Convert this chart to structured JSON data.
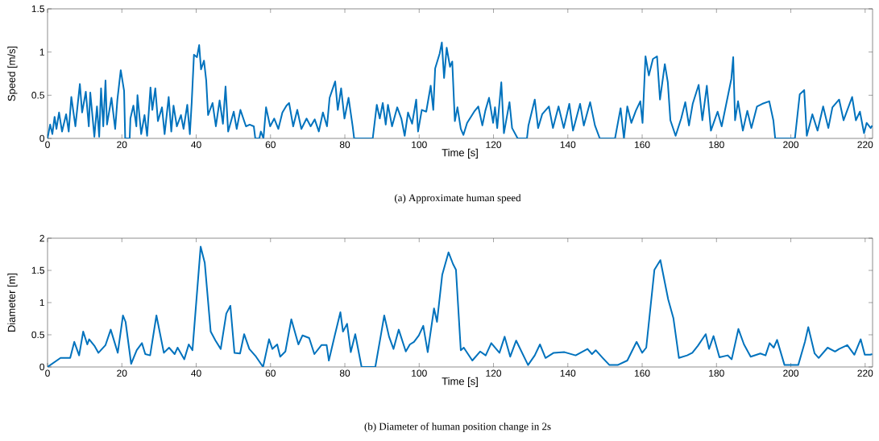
{
  "chart_data": [
    {
      "type": "line",
      "title": "(a)  Approximate human speed",
      "xlabel": "Time [s]",
      "ylabel": "Speed [m/s]",
      "color": "#0072bd",
      "x": [
        0,
        0.7,
        1.3,
        1.9,
        2.4,
        3.1,
        3.9,
        5,
        5.7,
        6.4,
        7.5,
        8.7,
        9.3,
        10.3,
        11.1,
        11.5,
        12.6,
        13.3,
        13.9,
        14.4,
        15,
        15.6,
        16,
        17.2,
        18.2,
        18.8,
        19.7,
        20.6,
        20.9,
        22.1,
        22.3,
        23.1,
        23.9,
        24.2,
        25.2,
        26.1,
        26.8,
        27.7,
        28.2,
        29,
        29.7,
        30.8,
        31.5,
        32.6,
        33.3,
        33.9,
        34.8,
        35.9,
        36.6,
        37.6,
        38.3,
        38.8,
        39.4,
        40.2,
        40.8,
        41.3,
        42.1,
        42.7,
        43.2,
        44.4,
        45.3,
        46.3,
        47.2,
        47.9,
        48.6,
        50.1,
        50.9,
        51.9,
        53.4,
        54.4,
        55.5,
        55.9,
        57,
        57.4,
        58.1,
        58.8,
        59.9,
        61,
        62.1,
        63.2,
        64.3,
        65,
        66.1,
        67.2,
        68.3,
        69.7,
        70.8,
        71.9,
        73,
        74.1,
        75.2,
        75.9,
        77.4,
        78.1,
        79,
        79.9,
        81,
        82.1,
        82.5,
        87.5,
        88.6,
        89.4,
        90.2,
        91,
        91.6,
        92.7,
        94.1,
        95.2,
        96.1,
        97,
        98.1,
        99.2,
        99.7,
        100.7,
        101.9,
        103.1,
        103.8,
        104.3,
        105.5,
        106.1,
        106.7,
        107.4,
        108.3,
        108.9,
        109.6,
        110.3,
        111.2,
        111.9,
        112.9,
        114.8,
        115.9,
        117,
        117.8,
        118.8,
        119.9,
        120.4,
        121,
        122.1,
        122.8,
        124.3,
        125,
        126.5,
        129,
        129.4,
        131.1,
        132,
        133.1,
        134.9,
        136,
        137.5,
        138.9,
        140.4,
        141.4,
        143.3,
        144.3,
        146,
        147.3,
        148.6,
        152.7,
        154.2,
        155.1,
        156,
        157.1,
        158.3,
        159.5,
        160.1,
        160.9,
        161.8,
        162.9,
        164,
        164.8,
        166.1,
        166.9,
        167.6,
        169,
        170.5,
        171.6,
        172.6,
        173.6,
        175.2,
        176.2,
        177.4,
        178.5,
        180.3,
        181.4,
        184,
        184.5,
        185,
        185.8,
        187.1,
        188.3,
        189.4,
        190.9,
        192.3,
        194.2,
        195.3,
        195.8,
        201.1,
        202.4,
        203.6,
        204.3,
        205.8,
        207.2,
        208.7,
        210.1,
        211.2,
        213,
        214.2,
        216.5,
        217.5,
        218.6,
        219.7,
        220.4,
        221.5,
        221.9
      ],
      "values": [
        0,
        0.16,
        0.05,
        0.25,
        0.11,
        0.3,
        0.08,
        0.28,
        0.08,
        0.48,
        0.14,
        0.63,
        0.3,
        0.54,
        0.14,
        0.53,
        0.02,
        0.37,
        0.02,
        0.58,
        0.14,
        0.67,
        0.16,
        0.47,
        0.11,
        0.45,
        0.79,
        0.55,
        0,
        0,
        0.23,
        0.38,
        0.14,
        0.5,
        0.05,
        0.27,
        0.03,
        0.59,
        0.33,
        0.58,
        0.2,
        0.36,
        0.05,
        0.48,
        0.08,
        0.38,
        0.14,
        0.27,
        0.11,
        0.39,
        0.05,
        0.42,
        0.97,
        0.94,
        1.08,
        0.8,
        0.9,
        0.67,
        0.27,
        0.41,
        0.14,
        0.44,
        0.17,
        0.6,
        0.08,
        0.31,
        0.11,
        0.33,
        0.14,
        0.16,
        0.14,
        0,
        0,
        0.08,
        0,
        0.36,
        0.14,
        0.23,
        0.11,
        0.3,
        0.38,
        0.41,
        0.14,
        0.33,
        0.11,
        0.23,
        0.14,
        0.22,
        0.08,
        0.3,
        0.14,
        0.47,
        0.66,
        0.33,
        0.58,
        0.23,
        0.47,
        0.14,
        0,
        0,
        0.39,
        0.23,
        0.41,
        0.16,
        0.39,
        0.14,
        0.36,
        0.23,
        0.03,
        0.3,
        0.17,
        0.45,
        0.08,
        0.33,
        0.31,
        0.61,
        0.33,
        0.81,
        0.98,
        1.11,
        0.7,
        1.05,
        0.83,
        0.89,
        0.2,
        0.36,
        0.11,
        0.04,
        0.18,
        0.31,
        0.37,
        0.15,
        0.32,
        0.47,
        0.18,
        0.36,
        0.12,
        0.65,
        0.06,
        0.42,
        0.12,
        0,
        0,
        0.15,
        0.45,
        0.12,
        0.28,
        0.37,
        0.12,
        0.37,
        0.12,
        0.4,
        0.09,
        0.4,
        0.15,
        0.42,
        0.15,
        0,
        0,
        0.35,
        0,
        0.37,
        0.18,
        0.32,
        0.43,
        0.18,
        0.95,
        0.73,
        0.92,
        0.95,
        0.45,
        0.86,
        0.65,
        0.21,
        0.03,
        0.23,
        0.42,
        0.15,
        0.4,
        0.62,
        0.21,
        0.61,
        0.09,
        0.31,
        0.14,
        0.69,
        0.94,
        0.21,
        0.43,
        0.09,
        0.32,
        0.12,
        0.37,
        0.4,
        0.43,
        0.21,
        0,
        0,
        0.51,
        0.56,
        0.03,
        0.28,
        0.09,
        0.37,
        0.12,
        0.36,
        0.45,
        0.21,
        0.48,
        0.21,
        0.31,
        0.06,
        0.18,
        0.12,
        0.15
      ],
      "xlim": [
        0,
        222
      ],
      "ylim": [
        0,
        1.5
      ],
      "xticks": [
        0,
        20,
        40,
        60,
        80,
        100,
        120,
        140,
        160,
        180,
        200,
        220
      ],
      "yticks": [
        0,
        0.5,
        1,
        1.5
      ]
    },
    {
      "type": "line",
      "title": "(b)  Diameter of human position change in 2s",
      "xlabel": "Time [s]",
      "ylabel": "Diameter [m]",
      "color": "#0072bd",
      "x": [
        0,
        3.5,
        6.1,
        7.2,
        8.5,
        9.6,
        10.7,
        11.2,
        12.6,
        13.7,
        15.6,
        17,
        18.9,
        20.3,
        21,
        22.5,
        24,
        25.4,
        26.3,
        27.6,
        29.3,
        31.3,
        32.7,
        34.2,
        35,
        36.8,
        38,
        39,
        41.2,
        42.3,
        43.9,
        45.2,
        46.6,
        48.1,
        49.2,
        50.3,
        51.8,
        52.9,
        54.3,
        56.1,
        58,
        59.6,
        60.5,
        61.8,
        62.6,
        64,
        65.6,
        67.5,
        68.6,
        70.4,
        71.8,
        73.7,
        75.1,
        75.7,
        77.2,
        78.8,
        79.5,
        80.6,
        81.6,
        82.8,
        84.5,
        88.2,
        89.8,
        90.6,
        91.9,
        93.1,
        94.5,
        96.4,
        97.5,
        98.6,
        99.9,
        101.1,
        102.3,
        104,
        104.8,
        106.2,
        107.9,
        109.1,
        109.9,
        111.2,
        112,
        114.3,
        116.4,
        117.9,
        119.4,
        121.6,
        123,
        124.5,
        126.1,
        129.3,
        131.1,
        132.5,
        134,
        136.2,
        139.1,
        142.1,
        145.3,
        146.5,
        147.5,
        149.4,
        151.2,
        153.4,
        156,
        158.5,
        160,
        161.1,
        163.3,
        164.9,
        167,
        168.4,
        169.9,
        172.1,
        173.5,
        175,
        177.1,
        178,
        179.2,
        180.8,
        183,
        184.1,
        185.9,
        187.4,
        189.2,
        191.8,
        193.2,
        194.3,
        195.4,
        196.3,
        198.3,
        202,
        203.8,
        204.7,
        206.4,
        207.5,
        209.9,
        211.9,
        213,
        215.2,
        217.1,
        218.8,
        219.9,
        221.4,
        221.9
      ],
      "values": [
        0,
        0.14,
        0.14,
        0.39,
        0.18,
        0.55,
        0.35,
        0.43,
        0.33,
        0.22,
        0.34,
        0.58,
        0.22,
        0.8,
        0.7,
        0.05,
        0.26,
        0.37,
        0.2,
        0.18,
        0.8,
        0.22,
        0.3,
        0.2,
        0.3,
        0.12,
        0.35,
        0.26,
        1.87,
        1.62,
        0.55,
        0.41,
        0.28,
        0.83,
        0.95,
        0.22,
        0.21,
        0.51,
        0.28,
        0.16,
        0,
        0.43,
        0.28,
        0.35,
        0.16,
        0.24,
        0.74,
        0.35,
        0.49,
        0.45,
        0.2,
        0.34,
        0.34,
        0.1,
        0.47,
        0.85,
        0.55,
        0.67,
        0.23,
        0.51,
        0,
        0,
        0.53,
        0.8,
        0.47,
        0.28,
        0.58,
        0.24,
        0.35,
        0.39,
        0.49,
        0.64,
        0.23,
        0.91,
        0.7,
        1.43,
        1.78,
        1.6,
        1.51,
        0.26,
        0.3,
        0.1,
        0.24,
        0.18,
        0.37,
        0.22,
        0.47,
        0.16,
        0.41,
        0.03,
        0.18,
        0.35,
        0.14,
        0.22,
        0.23,
        0.18,
        0.28,
        0.2,
        0.26,
        0.14,
        0.03,
        0.03,
        0.1,
        0.39,
        0.22,
        0.3,
        1.51,
        1.66,
        1.05,
        0.76,
        0.14,
        0.18,
        0.22,
        0.33,
        0.51,
        0.28,
        0.48,
        0.15,
        0.18,
        0.12,
        0.59,
        0.35,
        0.16,
        0.21,
        0.18,
        0.37,
        0.3,
        0.42,
        0.03,
        0.03,
        0.39,
        0.62,
        0.21,
        0.14,
        0.3,
        0.24,
        0.28,
        0.34,
        0.19,
        0.43,
        0.19,
        0.19,
        0.2
      ],
      "xlim": [
        0,
        222
      ],
      "ylim": [
        0,
        2
      ],
      "xticks": [
        0,
        20,
        40,
        60,
        80,
        100,
        120,
        140,
        160,
        180,
        200,
        220
      ],
      "yticks": [
        0,
        0.5,
        1,
        1.5,
        2
      ]
    }
  ]
}
